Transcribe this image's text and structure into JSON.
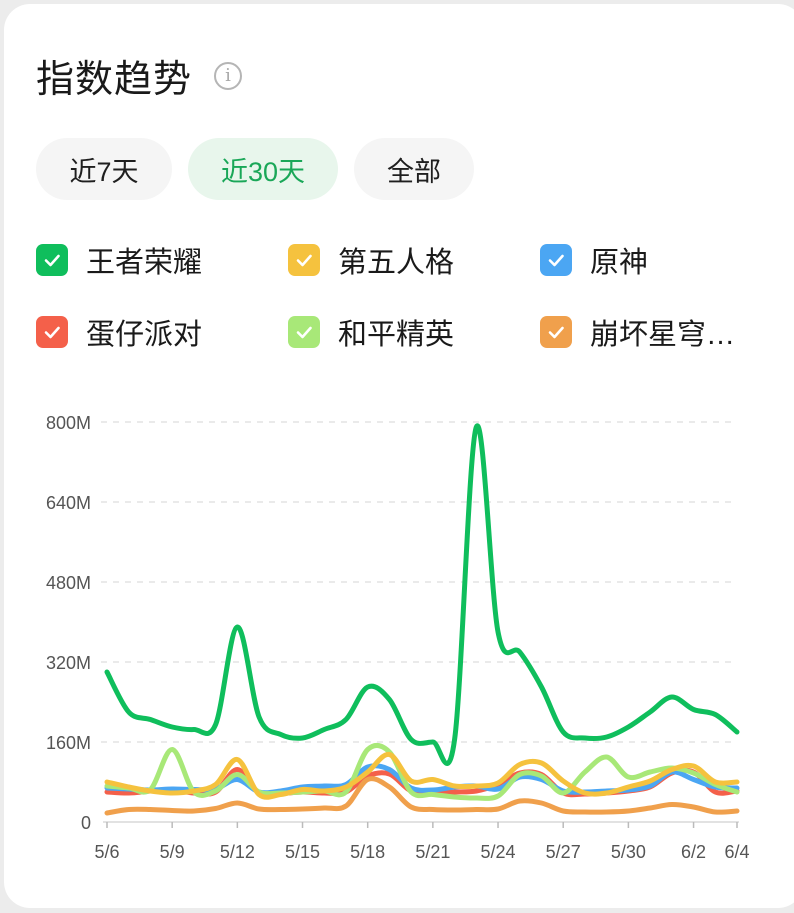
{
  "header": {
    "title": "指数趋势",
    "info_icon": "info-icon",
    "info_glyph": "i"
  },
  "tabs": [
    {
      "label": "近7天",
      "active": false
    },
    {
      "label": "近30天",
      "active": true
    },
    {
      "label": "全部",
      "active": false
    }
  ],
  "colors": {
    "accent": "#1aa758",
    "tab_bg": "#f5f5f5",
    "tab_active_bg": "#e8f6ec"
  },
  "legend": [
    {
      "label": "王者荣耀",
      "color": "#0fbe5c",
      "checked": true
    },
    {
      "label": "第五人格",
      "color": "#f5c23e",
      "checked": true
    },
    {
      "label": "原神",
      "color": "#4ba6f3",
      "checked": true
    },
    {
      "label": "蛋仔派对",
      "color": "#f4604a",
      "checked": true
    },
    {
      "label": "和平精英",
      "color": "#a8e878",
      "checked": true
    },
    {
      "label": "崩坏星穹…",
      "color": "#f0a04c",
      "checked": true
    }
  ],
  "chart_data": {
    "type": "line",
    "ylim": [
      0,
      800
    ],
    "yticks": [
      "0",
      "160M",
      "320M",
      "480M",
      "640M",
      "800M"
    ],
    "ytick_values": [
      0,
      160,
      320,
      480,
      640,
      800
    ],
    "grid": "horizontal-dashed",
    "x": [
      "5/6",
      "5/7",
      "5/8",
      "5/9",
      "5/10",
      "5/11",
      "5/12",
      "5/13",
      "5/14",
      "5/15",
      "5/16",
      "5/17",
      "5/18",
      "5/19",
      "5/20",
      "5/21",
      "5/22",
      "5/23",
      "5/24",
      "5/25",
      "5/26",
      "5/27",
      "5/28",
      "5/29",
      "5/30",
      "5/31",
      "6/1",
      "6/2",
      "6/3",
      "6/4"
    ],
    "xtick_labels": [
      "5/6",
      "5/9",
      "5/12",
      "5/15",
      "5/18",
      "5/21",
      "5/24",
      "5/27",
      "5/30",
      "6/2",
      "6/4"
    ],
    "xtick_indices": [
      0,
      3,
      6,
      9,
      12,
      15,
      18,
      21,
      24,
      27,
      29
    ],
    "series": [
      {
        "name": "蛋仔派对",
        "color": "#f4604a",
        "values": [
          60,
          58,
          62,
          65,
          58,
          60,
          105,
          58,
          57,
          60,
          58,
          60,
          92,
          96,
          62,
          58,
          60,
          62,
          75,
          98,
          95,
          58,
          56,
          58,
          62,
          70,
          98,
          100,
          60,
          62
        ]
      },
      {
        "name": "原神",
        "color": "#4ba6f3",
        "values": [
          68,
          66,
          64,
          66,
          65,
          66,
          85,
          60,
          62,
          70,
          72,
          75,
          110,
          105,
          68,
          64,
          70,
          72,
          66,
          90,
          85,
          62,
          60,
          62,
          64,
          72,
          100,
          85,
          70,
          68
        ]
      },
      {
        "name": "崩坏星穹…",
        "color": "#f0a04c",
        "values": [
          18,
          25,
          25,
          23,
          22,
          27,
          38,
          26,
          25,
          26,
          28,
          32,
          85,
          70,
          30,
          25,
          24,
          25,
          26,
          42,
          38,
          22,
          20,
          20,
          22,
          28,
          35,
          30,
          20,
          22
        ]
      },
      {
        "name": "和平精英",
        "color": "#a8e878",
        "values": [
          72,
          68,
          65,
          145,
          60,
          62,
          95,
          60,
          58,
          60,
          62,
          60,
          145,
          140,
          60,
          55,
          50,
          48,
          52,
          95,
          92,
          58,
          100,
          130,
          90,
          100,
          108,
          98,
          75,
          60
        ]
      },
      {
        "name": "第五人格",
        "color": "#f5c23e",
        "values": [
          80,
          70,
          62,
          58,
          62,
          75,
          125,
          55,
          55,
          65,
          62,
          70,
          100,
          135,
          82,
          85,
          72,
          72,
          78,
          115,
          118,
          82,
          58,
          58,
          70,
          82,
          105,
          112,
          80,
          80
        ]
      },
      {
        "name": "王者荣耀",
        "color": "#0fbe5c",
        "values": [
          300,
          220,
          205,
          190,
          185,
          195,
          390,
          210,
          175,
          168,
          185,
          205,
          270,
          245,
          165,
          160,
          165,
          790,
          380,
          340,
          270,
          180,
          168,
          170,
          190,
          220,
          250,
          225,
          215,
          180
        ]
      }
    ]
  }
}
